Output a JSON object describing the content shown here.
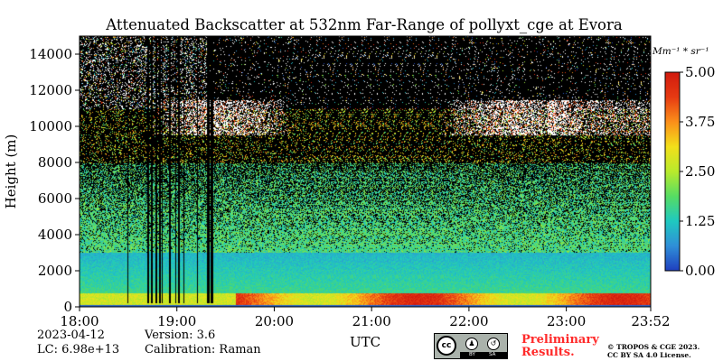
{
  "chart_data": {
    "type": "heatmap",
    "title": "Attenuated Backscatter at 532nm Far-Range of pollyxt_cge at Evora",
    "ylabel": "Height (m)",
    "xlabel": "UTC",
    "x_ticks": [
      "18:00",
      "19:00",
      "20:00",
      "21:00",
      "22:00",
      "23:00",
      "23:52"
    ],
    "x_range_hours": [
      18.0,
      23.8667
    ],
    "y_ticks": [
      0,
      2000,
      4000,
      6000,
      8000,
      10000,
      12000,
      14000
    ],
    "ylim": [
      0,
      15000
    ],
    "colorbar": {
      "unit_label": "Mm⁻¹ * sr⁻¹",
      "ticks": [
        "0.00",
        "1.25",
        "2.50",
        "3.75",
        "5.00"
      ],
      "range": [
        0.0,
        5.0
      ],
      "colormap": [
        "#1f3fbf",
        "#2f8fd8",
        "#1fc9c0",
        "#56dc63",
        "#b9ea2c",
        "#f2df1a",
        "#fb8f1a",
        "#e63a12",
        "#d11a0e"
      ]
    },
    "features": {
      "surface_layer_max_m": 800,
      "boundary_layer_top_m": 3000,
      "cirrus_cloud_m": [
        9500,
        11500
      ],
      "no_data_stripes_hours": [
        18.45,
        19.4
      ]
    }
  },
  "footer": {
    "date": "2023-04-12",
    "lc": "LC: 6.98e+13",
    "version": "Version: 3.6",
    "calibration": "Calibration: Raman",
    "preliminary_line1": "Preliminary",
    "preliminary_line2": "Results.",
    "copyright_line1": "© TROPOS & CGE 2023.",
    "copyright_line2": "CC BY SA 4.0 License.",
    "cc_main": "cc",
    "cc_by": "BY",
    "cc_sa": "SA"
  }
}
